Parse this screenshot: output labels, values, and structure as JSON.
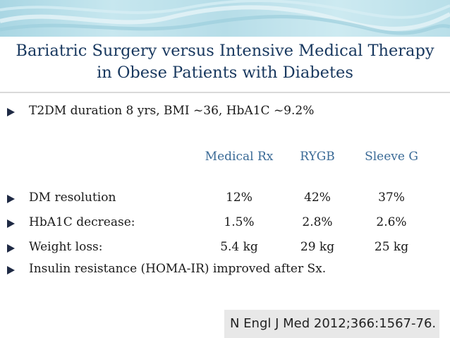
{
  "slide": {
    "title_line1": "Bariatric Surgery versus Intensive Medical Therapy",
    "title_line2": "in Obese Patients with Diabetes",
    "intro": "T2DM duration 8 yrs, BMI ~36, HbA1C ~9.2%",
    "headers": [
      "Medical Rx",
      "RYGB",
      "Sleeve G"
    ],
    "rows": [
      {
        "label": "DM resolution",
        "values": [
          "12%",
          "42%",
          "37%"
        ]
      },
      {
        "label": "HbA1C decrease:",
        "values": [
          "1.5%",
          "2.8%",
          "2.6%"
        ]
      },
      {
        "label": "Weight loss:",
        "values": [
          "5.4 kg",
          "29 kg",
          "25 kg"
        ]
      }
    ],
    "closing": "Insulin resistance (HOMA-IR) improved after Sx.",
    "citation": "N Engl J Med 2012;366:1567-76."
  },
  "colors": {
    "title": "#17375e",
    "header_text": "#3a6a96",
    "bullet": "#1f2a44",
    "band": "#b6dde8"
  }
}
